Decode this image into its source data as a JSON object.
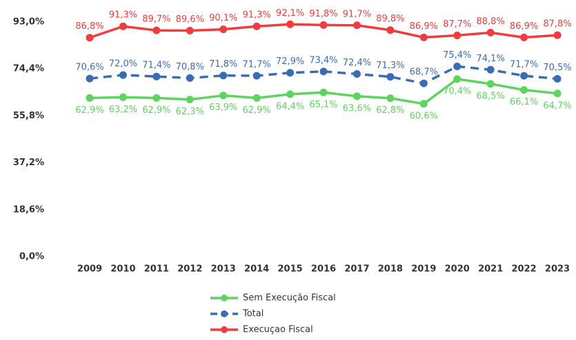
{
  "chart_data": {
    "type": "line",
    "categories": [
      "2009",
      "2010",
      "2011",
      "2012",
      "2013",
      "2014",
      "2015",
      "2016",
      "2017",
      "2018",
      "2019",
      "2020",
      "2021",
      "2022",
      "2023"
    ],
    "ylim": [
      0,
      93
    ],
    "yticks": [
      {
        "value": 0,
        "label": "0,0%"
      },
      {
        "value": 18.6,
        "label": "18,6%"
      },
      {
        "value": 37.2,
        "label": "37,2%"
      },
      {
        "value": 55.8,
        "label": "55,8%"
      },
      {
        "value": 74.4,
        "label": "74,4%"
      },
      {
        "value": 93,
        "label": "93,0%"
      }
    ],
    "legend": "bottom",
    "series": [
      {
        "name": "Sem Execução Fiscal",
        "color": "#5fd35f",
        "dash": false,
        "label_side": "below",
        "values": [
          62.9,
          63.2,
          62.9,
          62.3,
          63.9,
          62.9,
          64.4,
          65.1,
          63.6,
          62.8,
          60.6,
          70.4,
          68.5,
          66.1,
          64.7
        ],
        "value_labels": [
          "62,9%",
          "63,2%",
          "62,9%",
          "62,3%",
          "63,9%",
          "62,9%",
          "64,4%",
          "65,1%",
          "63,6%",
          "62,8%",
          "60,6%",
          "70,4%",
          "68,5%",
          "66,1%",
          "64,7%"
        ]
      },
      {
        "name": "Total",
        "color": "#3a6cb5",
        "dash": true,
        "label_side": "above",
        "values": [
          70.6,
          72.0,
          71.4,
          70.8,
          71.8,
          71.7,
          72.9,
          73.4,
          72.4,
          71.3,
          68.7,
          75.4,
          74.1,
          71.7,
          70.5
        ],
        "value_labels": [
          "70,6%",
          "72,0%",
          "71,4%",
          "70,8%",
          "71,8%",
          "71,7%",
          "72,9%",
          "73,4%",
          "72,4%",
          "71,3%",
          "68,7%",
          "75,4%",
          "74,1%",
          "71,7%",
          "70,5%"
        ]
      },
      {
        "name": "Execuçao Fiscal",
        "color": "#f03c3c",
        "dash": false,
        "label_side": "above",
        "values": [
          86.8,
          91.3,
          89.7,
          89.6,
          90.1,
          91.3,
          92.1,
          91.8,
          91.7,
          89.8,
          86.9,
          87.7,
          88.8,
          86.9,
          87.8
        ],
        "value_labels": [
          "86,8%",
          "91,3%",
          "89,7%",
          "89,6%",
          "90,1%",
          "91,3%",
          "92,1%",
          "91,8%",
          "91,7%",
          "89,8%",
          "86,9%",
          "87,7%",
          "88,8%",
          "86,9%",
          "87,8%"
        ]
      }
    ]
  }
}
